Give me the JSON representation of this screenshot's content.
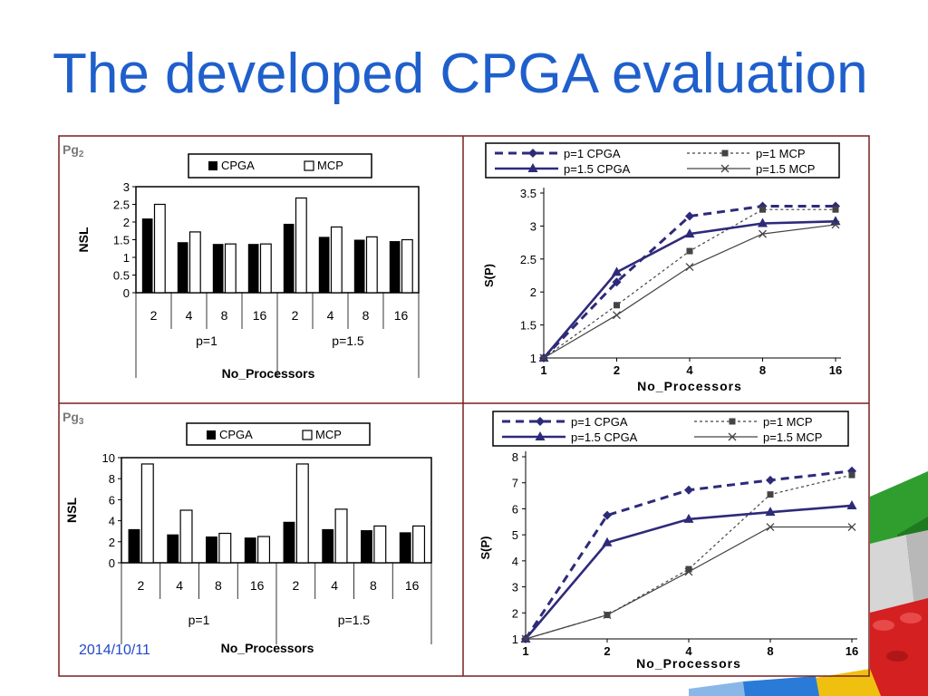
{
  "slide": {
    "title": "The developed CPGA evaluation",
    "date": "2014/10/11"
  },
  "colors": {
    "title": "#1f5fcc",
    "frame": "#7a1f1f",
    "cpga": "#2e2a7a",
    "mcp": "#444444"
  },
  "panels": [
    {
      "label": "Pg",
      "sub": "2"
    },
    {
      "label": "Pg",
      "sub": "3"
    }
  ],
  "chart_data": [
    {
      "type": "bar",
      "ylabel": "NSL",
      "xlabel": "No_Processors",
      "ylim": [
        0,
        3
      ],
      "yticks": [
        "0",
        "0.5",
        "1",
        "1.5",
        "2",
        "2.5",
        "3"
      ],
      "categories": [
        "2",
        "4",
        "8",
        "16",
        "2",
        "4",
        "8",
        "16"
      ],
      "groups": [
        "p=1",
        "p=1.5"
      ],
      "legend": "top",
      "series": [
        {
          "name": "CPGA",
          "values": [
            2.1,
            1.43,
            1.38,
            1.38,
            1.95,
            1.58,
            1.5,
            1.46
          ]
        },
        {
          "name": "MCP",
          "values": [
            2.5,
            1.72,
            1.38,
            1.38,
            2.68,
            1.86,
            1.58,
            1.5
          ]
        }
      ]
    },
    {
      "type": "line",
      "ylabel": "S(P)",
      "xlabel": "No_Processors",
      "x": [
        "1",
        "2",
        "4",
        "8",
        "16"
      ],
      "ylim": [
        1,
        3.5
      ],
      "yticks": [
        "1",
        "1.5",
        "2",
        "2.5",
        "3",
        "3.5"
      ],
      "legend": "top",
      "series": [
        {
          "name": "p=1 CPGA",
          "values": [
            1,
            2.15,
            3.15,
            3.3,
            3.3
          ]
        },
        {
          "name": "p=1 MCP",
          "values": [
            1,
            1.8,
            2.62,
            3.25,
            3.25
          ]
        },
        {
          "name": "p=1.5 CPGA",
          "values": [
            1,
            2.3,
            2.88,
            3.04,
            3.07
          ]
        },
        {
          "name": "p=1.5 MCP",
          "values": [
            1,
            1.65,
            2.38,
            2.88,
            3.02
          ]
        }
      ]
    },
    {
      "type": "bar",
      "ylabel": "NSL",
      "xlabel": "No_Processors",
      "ylim": [
        0,
        10
      ],
      "yticks": [
        "0",
        "2",
        "4",
        "6",
        "8",
        "10"
      ],
      "categories": [
        "2",
        "4",
        "8",
        "16",
        "2",
        "4",
        "8",
        "16"
      ],
      "groups": [
        "p=1",
        "p=1.5"
      ],
      "legend": "top",
      "series": [
        {
          "name": "CPGA",
          "values": [
            3.2,
            2.7,
            2.5,
            2.4,
            3.9,
            3.2,
            3.1,
            2.9
          ]
        },
        {
          "name": "MCP",
          "values": [
            9.4,
            5.0,
            2.8,
            2.5,
            9.4,
            5.1,
            3.5,
            3.5
          ]
        }
      ]
    },
    {
      "type": "line",
      "ylabel": "S(P)",
      "xlabel": "No_Processors",
      "x": [
        "1",
        "2",
        "4",
        "8",
        "16"
      ],
      "ylim": [
        1,
        8
      ],
      "yticks": [
        "1",
        "2",
        "3",
        "4",
        "5",
        "6",
        "7",
        "8"
      ],
      "legend": "top",
      "series": [
        {
          "name": "p=1 CPGA",
          "values": [
            1,
            5.75,
            6.72,
            7.1,
            7.45
          ]
        },
        {
          "name": "p=1 MCP",
          "values": [
            1,
            1.92,
            3.68,
            6.55,
            7.3
          ]
        },
        {
          "name": "p=1.5 CPGA",
          "values": [
            1,
            4.7,
            5.6,
            5.87,
            6.12
          ]
        },
        {
          "name": "p=1.5 MCP",
          "values": [
            1,
            1.92,
            3.58,
            5.3,
            5.3
          ]
        }
      ]
    }
  ]
}
